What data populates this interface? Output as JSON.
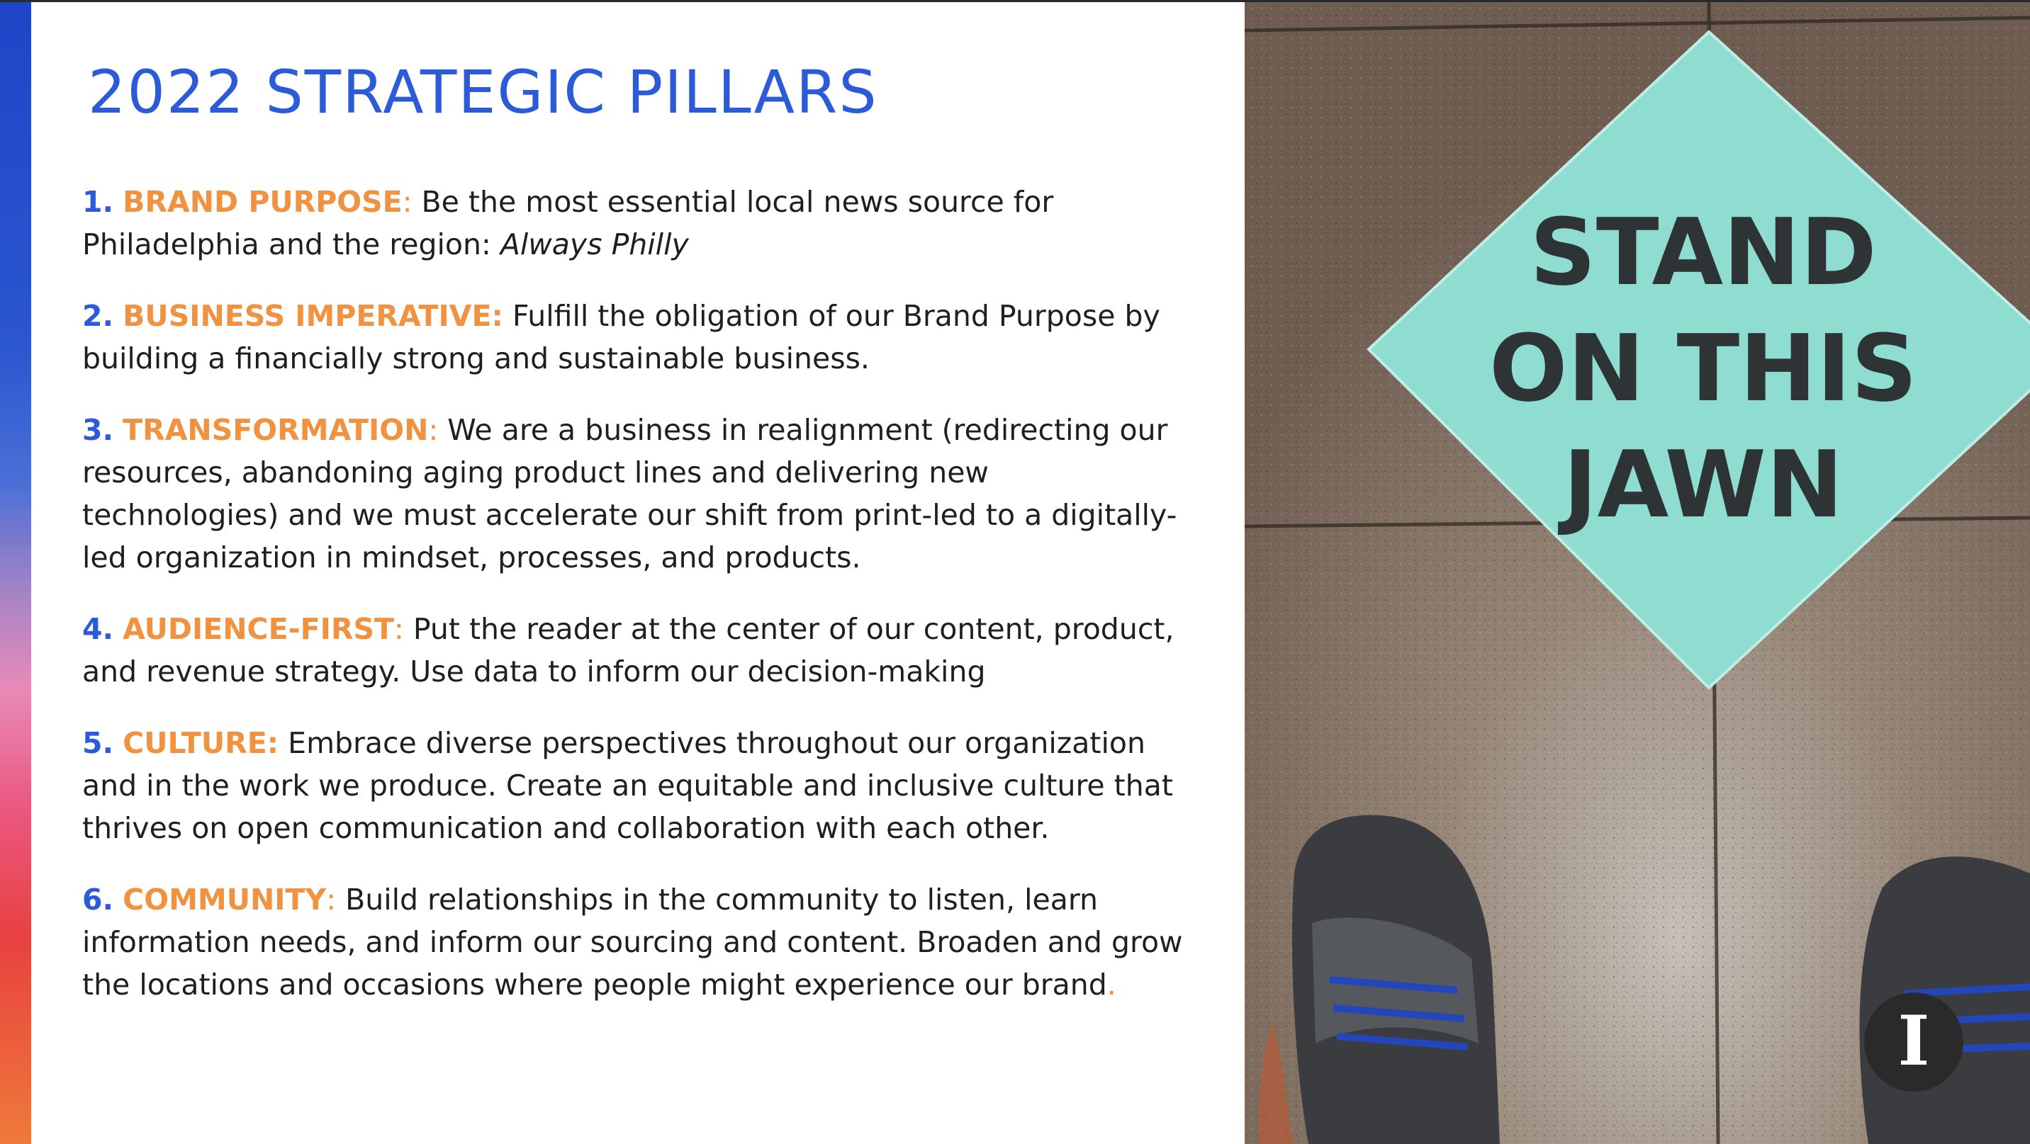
{
  "slide": {
    "title": "2022 STRATEGIC PILLARS",
    "pillars": [
      {
        "number": "1.",
        "heading": "BRAND PURPOSE",
        "colon": ":",
        "body": " Be the most essential local news source for Philadelphia and the region: ",
        "emphasis": "Always Philly",
        "tail": ""
      },
      {
        "number": "2.",
        "heading": "BUSINESS IMPERATIVE:",
        "colon": "",
        "body": " Fulfill the obligation of our Brand Purpose by building a financially strong and sustainable business.",
        "emphasis": "",
        "tail": ""
      },
      {
        "number": "3.",
        "heading": "TRANSFORMATION",
        "colon": ":",
        "body": " We are a business in realignment (redirecting our resources, abandoning aging product lines and delivering new technologies) and we must accelerate our shift from print-led to a digitally-led organization in mindset, processes, and products.",
        "emphasis": "",
        "tail": ""
      },
      {
        "number": "4.",
        "heading": "AUDIENCE-FIRST",
        "colon": ":",
        "body": " Put the reader at the center of our content, product, and revenue strategy. Use data to inform our decision-making",
        "emphasis": "",
        "tail": ""
      },
      {
        "number": "5.",
        "heading": "CULTURE:",
        "colon": "",
        "body": " Embrace diverse perspectives throughout our organization and in the work we produce. Create an equitable and inclusive culture that thrives on open communication and collaboration with each other.",
        "emphasis": "",
        "tail": ""
      },
      {
        "number": "6.",
        "heading": "COMMUNITY",
        "colon": ":",
        "body": " Build relationships in the community to listen, learn information needs, and inform our sourcing and content. Broaden and grow the locations and occasions where people might experience our brand",
        "emphasis": "",
        "tail": "."
      }
    ]
  },
  "photo": {
    "sign_lines": [
      "STAND",
      "ON THIS",
      "JAWN"
    ],
    "logo_letter": "I",
    "colors": {
      "floor": "#7a6a5c",
      "sign": "#8fdcd0",
      "sign_text": "#2e3335"
    }
  },
  "colors": {
    "title_blue": "#2c5bd9",
    "heading_orange": "#f0923f",
    "body_text": "#1f1f1f"
  }
}
